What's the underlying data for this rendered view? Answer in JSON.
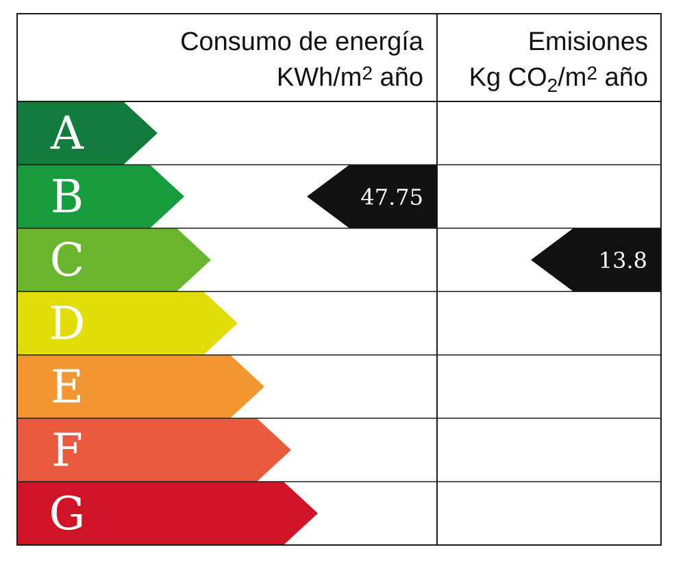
{
  "header": {
    "energy_title": "Consumo de energía",
    "energy_unit_pre": "KWh/m",
    "energy_unit_sup": "2",
    "energy_unit_post": " año",
    "emissions_title": "Emisiones",
    "emissions_unit_pre": "Kg CO",
    "emissions_unit_sub": "2",
    "emissions_unit_mid": "/m",
    "emissions_unit_sup": "2",
    "emissions_unit_post": " año"
  },
  "chart_data": {
    "type": "table",
    "ratings": [
      {
        "letter": "A",
        "color": "#127c3d"
      },
      {
        "letter": "B",
        "color": "#169c3c"
      },
      {
        "letter": "C",
        "color": "#6ab52e"
      },
      {
        "letter": "D",
        "color": "#e3dc0b"
      },
      {
        "letter": "E",
        "color": "#f19631"
      },
      {
        "letter": "F",
        "color": "#e95a3f"
      },
      {
        "letter": "G",
        "color": "#cf1426"
      }
    ],
    "indicators": [
      {
        "column": "energy",
        "rating": "B",
        "value": "47.75",
        "color": "#111111"
      },
      {
        "column": "emissions",
        "rating": "C",
        "value": "13.8",
        "color": "#111111"
      }
    ]
  }
}
